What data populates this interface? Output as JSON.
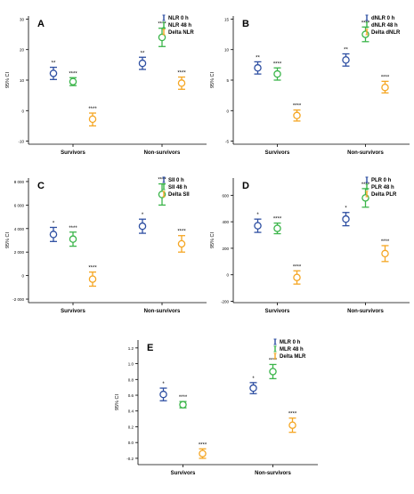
{
  "colors": {
    "series_0": "#2e4fa2",
    "series_1": "#3bb54a",
    "series_2": "#f5a623",
    "axis": "#000000"
  },
  "chart_data": [
    {
      "type": "scatter",
      "panel_label": "A",
      "ylabel": "95% CI",
      "categories": [
        "Survivors",
        "Non-survivors"
      ],
      "ylim": [
        -11,
        31
      ],
      "yticks": [
        -10,
        0,
        10,
        20,
        30
      ],
      "ytick_labels": [
        "-10",
        "0",
        "10",
        "20",
        "30"
      ],
      "legend_position": "top-right",
      "series": [
        {
          "name": "NLR 0 h",
          "values": [
            12.2,
            15.5
          ],
          "lower": [
            10.2,
            13.5
          ],
          "upper": [
            14.2,
            17.5
          ],
          "labels": [
            "**",
            "**"
          ]
        },
        {
          "name": "NLR 48 h",
          "values": [
            9.5,
            24.0
          ],
          "lower": [
            8.2,
            21.0
          ],
          "upper": [
            10.8,
            27.0
          ],
          "labels": [
            "****",
            "****"
          ]
        },
        {
          "name": "Delta NLR",
          "values": [
            -2.8,
            9.0
          ],
          "lower": [
            -5.0,
            7.0
          ],
          "upper": [
            -0.8,
            11.0
          ],
          "labels": [
            "****",
            "****"
          ]
        }
      ]
    },
    {
      "type": "scatter",
      "panel_label": "B",
      "ylabel": "95% CI",
      "categories": [
        "Survivors",
        "Non-survivors"
      ],
      "ylim": [
        -5.5,
        15.5
      ],
      "yticks": [
        -5,
        0,
        5,
        10,
        15
      ],
      "ytick_labels": [
        "-5",
        "0",
        "5",
        "10",
        "15"
      ],
      "legend_position": "top-right",
      "series": [
        {
          "name": "dNLR 0 h",
          "values": [
            7.0,
            8.3
          ],
          "lower": [
            6.0,
            7.3
          ],
          "upper": [
            8.0,
            9.3
          ],
          "labels": [
            "**",
            "**"
          ]
        },
        {
          "name": "dNLR 48 h",
          "values": [
            6.0,
            12.5
          ],
          "lower": [
            5.0,
            11.3
          ],
          "upper": [
            7.0,
            13.7
          ],
          "labels": [
            "****",
            "****"
          ]
        },
        {
          "name": "Delta dNLR",
          "values": [
            -0.8,
            3.8
          ],
          "lower": [
            -1.7,
            2.9
          ],
          "upper": [
            0.1,
            4.8
          ],
          "labels": [
            "****",
            "****"
          ]
        }
      ]
    },
    {
      "type": "scatter",
      "panel_label": "C",
      "ylabel": "95% CI",
      "categories": [
        "Survivors",
        "Non-survivors"
      ],
      "ylim": [
        -2300,
        8300
      ],
      "yticks": [
        -2000,
        0,
        2000,
        4000,
        6000,
        8000
      ],
      "ytick_labels": [
        "-2 000",
        "0",
        "2 000",
        "4 000",
        "6 000",
        "8 000"
      ],
      "legend_position": "top-right",
      "series": [
        {
          "name": "SII 0 h",
          "values": [
            3500,
            4200
          ],
          "lower": [
            2900,
            3600
          ],
          "upper": [
            4100,
            4800
          ],
          "labels": [
            "*",
            "*"
          ]
        },
        {
          "name": "SII 48 h",
          "values": [
            3100,
            6900
          ],
          "lower": [
            2500,
            6000
          ],
          "upper": [
            3700,
            7800
          ],
          "labels": [
            "****",
            "****"
          ]
        },
        {
          "name": "Delta SII",
          "values": [
            -300,
            2700
          ],
          "lower": [
            -900,
            2000
          ],
          "upper": [
            300,
            3400
          ],
          "labels": [
            "****",
            "****"
          ]
        }
      ]
    },
    {
      "type": "scatter",
      "panel_label": "D",
      "ylabel": "95% CI",
      "categories": [
        "Survivors",
        "Non-survivors"
      ],
      "ylim": [
        -210,
        730
      ],
      "yticks": [
        -200,
        0,
        200,
        400,
        600
      ],
      "ytick_labels": [
        "-200",
        "0",
        "200",
        "400",
        "600"
      ],
      "legend_position": "top-right",
      "series": [
        {
          "name": "PLR 0 h",
          "values": [
            370,
            420
          ],
          "lower": [
            320,
            370
          ],
          "upper": [
            420,
            470
          ],
          "labels": [
            "*",
            "*"
          ]
        },
        {
          "name": "PLR 48 h",
          "values": [
            350,
            580
          ],
          "lower": [
            310,
            510
          ],
          "upper": [
            390,
            650
          ],
          "labels": [
            "****",
            "****"
          ]
        },
        {
          "name": "Delta PLR",
          "values": [
            -20,
            160
          ],
          "lower": [
            -70,
            100
          ],
          "upper": [
            30,
            220
          ],
          "labels": [
            "****",
            "****"
          ]
        }
      ]
    },
    {
      "type": "scatter",
      "panel_label": "E",
      "ylabel": "95% CI",
      "categories": [
        "Survivors",
        "Non-survivors"
      ],
      "ylim": [
        -0.28,
        1.3
      ],
      "yticks": [
        -0.2,
        0.0,
        0.2,
        0.4,
        0.6,
        0.8,
        1.0,
        1.2
      ],
      "ytick_labels": [
        "-0.2",
        "0.0",
        "0.2",
        "0.4",
        "0.6",
        "0.8",
        "1.0",
        "1.2"
      ],
      "legend_position": "top-right",
      "series": [
        {
          "name": "MLR 0 h",
          "values": [
            0.61,
            0.69
          ],
          "lower": [
            0.53,
            0.62
          ],
          "upper": [
            0.69,
            0.76
          ],
          "labels": [
            "*",
            "*"
          ]
        },
        {
          "name": "MLR 48 h",
          "values": [
            0.48,
            0.9
          ],
          "lower": [
            0.44,
            0.81
          ],
          "upper": [
            0.52,
            0.99
          ],
          "labels": [
            "****",
            "****"
          ]
        },
        {
          "name": "Delta MLR",
          "values": [
            -0.14,
            0.22
          ],
          "lower": [
            -0.2,
            0.13
          ],
          "upper": [
            -0.08,
            0.31
          ],
          "labels": [
            "****",
            "****"
          ]
        }
      ]
    }
  ]
}
